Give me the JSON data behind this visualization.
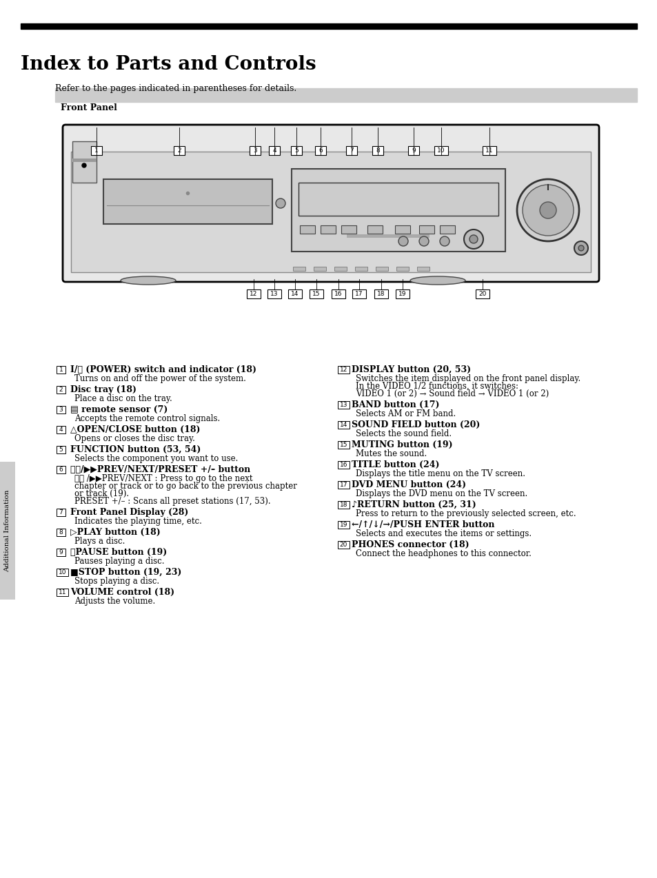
{
  "title": "Index to Parts and Controls",
  "subtitle": "Refer to the pages indicated in parentheses for details.",
  "section_label": "Front Panel",
  "bg_color": "#ffffff",
  "left_items": [
    {
      "num": "1",
      "bold": "I/⏽ (POWER) switch and indicator (18)",
      "desc": [
        "Turns on and off the power of the system."
      ]
    },
    {
      "num": "2",
      "bold": "Disc tray (18)",
      "desc": [
        "Place a disc on the tray."
      ]
    },
    {
      "num": "3",
      "bold": "▤ remote sensor (7)",
      "desc": [
        "Accepts the remote control signals."
      ]
    },
    {
      "num": "4",
      "bold": "△OPEN/CLOSE button (18)",
      "desc": [
        "Opens or closes the disc tray."
      ]
    },
    {
      "num": "5",
      "bold": "FUNCTION button (53, 54)",
      "desc": [
        "Selects the component you want to use."
      ]
    },
    {
      "num": "6",
      "bold": "⧏⧏/▶▶PREV/NEXT/PRESET +/– button",
      "desc": [
        "⧏⧏ /▶▶PREV/NEXT : Press to go to the next",
        "chapter or track or to go back to the previous chapter",
        "or track (19).",
        "PRESET +/– : Scans all preset stations (17, 53)."
      ]
    },
    {
      "num": "7",
      "bold": "Front Panel Display (28)",
      "desc": [
        "Indicates the playing time, etc."
      ]
    },
    {
      "num": "8",
      "bold": "▷PLAY button (18)",
      "desc": [
        "Plays a disc."
      ]
    },
    {
      "num": "9",
      "bold": "⏸PAUSE button (19)",
      "desc": [
        "Pauses playing a disc."
      ]
    },
    {
      "num": "10",
      "bold": "■STOP button (19, 23)",
      "desc": [
        "Stops playing a disc."
      ]
    },
    {
      "num": "11",
      "bold": "VOLUME control (18)",
      "desc": [
        "Adjusts the volume."
      ]
    }
  ],
  "right_items": [
    {
      "num": "12",
      "bold": "DISPLAY button (20, 53)",
      "desc": [
        "Switches the item displayed on the front panel display.",
        "In the VIDEO 1/2 functions, it switches:",
        "VIDEO 1 (or 2) → Sound field → VIDEO 1 (or 2)"
      ]
    },
    {
      "num": "13",
      "bold": "BAND button (17)",
      "desc": [
        "Selects AM or FM band."
      ]
    },
    {
      "num": "14",
      "bold": "SOUND FIELD button (20)",
      "desc": [
        "Selects the sound field."
      ]
    },
    {
      "num": "15",
      "bold": "MUTING button (19)",
      "desc": [
        "Mutes the sound."
      ]
    },
    {
      "num": "16",
      "bold": "TITLE button (24)",
      "desc": [
        "Displays the title menu on the TV screen."
      ]
    },
    {
      "num": "17",
      "bold": "DVD MENU button (24)",
      "desc": [
        "Displays the DVD menu on the TV screen."
      ]
    },
    {
      "num": "18",
      "bold": "♪RETURN button (25, 31)",
      "desc": [
        "Press to return to the previously selected screen, etc."
      ]
    },
    {
      "num": "19",
      "bold": "←/↑/↓/→/PUSH ENTER button",
      "desc": [
        "Selects and executes the items or settings."
      ]
    },
    {
      "num": "20",
      "bold": "PHONES connector (18)",
      "desc": [
        "Connect the headphones to this connector."
      ]
    }
  ],
  "side_label": "Additional Information",
  "title_bar_color": "#000000",
  "section_bar_color": "#cccccc",
  "title_fontsize": 20,
  "subtitle_fontsize": 9,
  "section_fontsize": 9,
  "item_bold_fontsize": 9,
  "item_desc_fontsize": 8.5
}
